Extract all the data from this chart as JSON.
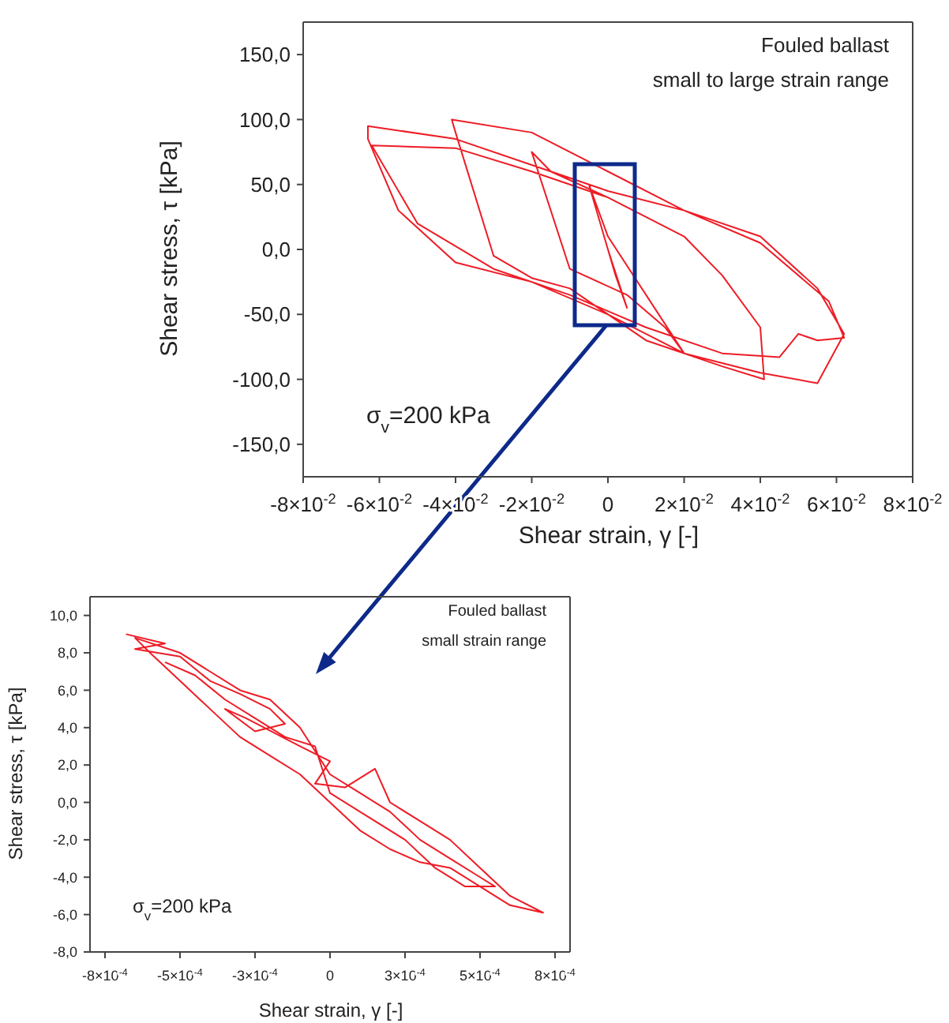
{
  "chart_data": [
    {
      "type": "line",
      "xlabel": "Shear strain, γ [-]",
      "ylabel": "Shear stress, τ [kPa]",
      "annotations": [
        "Fouled ballast",
        "small to large strain range",
        "σ$_{v}$=200 kPa"
      ],
      "xlim": [
        -0.08,
        0.08
      ],
      "xticks": [
        {
          "value": -0.08,
          "label": "-8×10$^{-2}$"
        },
        {
          "value": -0.06,
          "label": "-6×10$^{-2}$"
        },
        {
          "value": -0.04,
          "label": "-4×10$^{-2}$"
        },
        {
          "value": -0.02,
          "label": "-2×10$^{-2}$"
        },
        0,
        {
          "value": 0.02,
          "label": "2×10$^{-2}$"
        },
        {
          "value": 0.04,
          "label": "4×10$^{-2}$"
        },
        {
          "value": 0.06,
          "label": "6×10$^{-2}$"
        },
        {
          "value": 0.08,
          "label": "8×10$^{-2}$"
        }
      ],
      "ylim": [
        -175,
        175
      ],
      "yticks": [
        {
          "value": -150,
          "label": "-150,0"
        },
        {
          "value": -100,
          "label": "-100,0"
        },
        {
          "value": -50,
          "label": "-50,0"
        },
        {
          "value": 0,
          "label": "0,0"
        },
        {
          "value": 50,
          "label": "50,0"
        },
        {
          "value": 100,
          "label": "100,0"
        },
        {
          "value": 150,
          "label": "150,0"
        }
      ],
      "series": [
        {
          "color": "#ee1c25",
          "x": [
            0,
            0.005,
            0.002,
            -0.005,
            0,
            0.02,
            0.015,
            0.005,
            -0.01,
            -0.02,
            -0.015,
            0,
            0.02,
            0.03,
            0.04,
            0.041,
            0.03,
            0.01,
            -0.005,
            -0.01,
            -0.02,
            -0.03,
            -0.04,
            -0.041,
            -0.02,
            0,
            0.02,
            0.04,
            0.055,
            0.062,
            0.055,
            0.04,
            0.02,
            0,
            -0.02,
            -0.04,
            -0.055,
            -0.063,
            -0.063,
            -0.04,
            -0.02,
            0,
            0.02,
            0.04,
            0.058,
            0.062,
            0.055,
            0.05,
            0.045,
            0.03,
            0.01,
            -0.01,
            -0.03,
            -0.05,
            -0.062,
            -0.04,
            -0.02,
            0
          ],
          "values": [
            0,
            -45,
            -20,
            50,
            10,
            -80,
            -60,
            -35,
            -15,
            75,
            60,
            40,
            10,
            -20,
            -60,
            -100,
            -90,
            -70,
            -40,
            -30,
            -22,
            -5,
            90,
            100,
            90,
            60,
            30,
            10,
            -30,
            -65,
            -103,
            -95,
            -80,
            -50,
            -25,
            -10,
            30,
            85,
            95,
            85,
            65,
            45,
            30,
            5,
            -40,
            -68,
            -70,
            -65,
            -83,
            -80,
            -60,
            -35,
            -15,
            20,
            80,
            78,
            60,
            40
          ]
        }
      ]
    },
    {
      "type": "line",
      "xlabel": "Shear strain, γ [-]",
      "ylabel": "Shear stress, τ [kPa]",
      "annotations": [
        "Fouled ballast",
        "small strain range",
        "σ$_{v}$=200 kPa"
      ],
      "xlim": [
        -0.0008,
        0.0008
      ],
      "xticks": [
        {
          "value": -0.00075,
          "label": "-8×10$^{-4}$"
        },
        {
          "value": -0.0005,
          "label": "-5×10$^{-4}$"
        },
        {
          "value": -0.00025,
          "label": "-3×10$^{-4}$"
        },
        0,
        {
          "value": 0.00025,
          "label": "3×10$^{-4}$"
        },
        {
          "value": 0.0005,
          "label": "5×10$^{-4}$"
        },
        {
          "value": 0.00075,
          "label": "8×10$^{-4}$"
        }
      ],
      "ylim": [
        -8,
        11
      ],
      "yticks": [
        {
          "value": -8,
          "label": "-8,0"
        },
        {
          "value": -6,
          "label": "-6,0"
        },
        {
          "value": -4,
          "label": "-4,0"
        },
        {
          "value": -2,
          "label": "-2,0"
        },
        {
          "value": 0,
          "label": "0,0"
        },
        {
          "value": 2,
          "label": "2,0"
        },
        {
          "value": 4,
          "label": "4,0"
        },
        {
          "value": 6,
          "label": "6,0"
        },
        {
          "value": 8,
          "label": "8,0"
        },
        {
          "value": 10,
          "label": "10,0"
        }
      ],
      "series": [
        {
          "color": "#ee1c25",
          "x": [
            -0.00068,
            -0.00055,
            -0.00065,
            -0.0005,
            -0.0004,
            -0.0003,
            -0.0002,
            -0.00015,
            -0.00025,
            -0.00035,
            -0.00028,
            -0.0001,
            0,
            -5e-05,
            5e-05,
            0.00015,
            0.0002,
            0.0003,
            0.0004,
            0.0005,
            0.0006,
            0.00071,
            0.0006,
            0.0005,
            0.0004,
            0.0003,
            0.0002,
            0.0001,
            0,
            -0.0001,
            -0.0002,
            -0.0003,
            -0.0004,
            -0.0005,
            -0.0006,
            -0.00065,
            -0.0005,
            -0.0004,
            -0.0003,
            -0.0002,
            -0.0001,
            0,
            0.0001,
            0.0002,
            0.0003,
            0.0004,
            0.0005,
            0.00055,
            0.00045,
            0.00035,
            0.00025,
            0.0001,
            0,
            -5e-05,
            -0.00015,
            -0.00025,
            -0.00035,
            -0.00045,
            -0.00055
          ],
          "values": [
            9,
            8.5,
            8.2,
            7.8,
            6.5,
            5.8,
            5,
            4.2,
            3.8,
            5,
            4.5,
            3,
            2.2,
            1,
            0.8,
            1.8,
            0,
            -1,
            -2,
            -3.5,
            -5,
            -5.9,
            -5.5,
            -4.5,
            -3.5,
            -3.2,
            -2.5,
            -1.5,
            0,
            1.5,
            2.5,
            3.5,
            5,
            6.5,
            8,
            8.8,
            8,
            7,
            6,
            5.5,
            4,
            1.5,
            0.5,
            -0.5,
            -2,
            -3,
            -4,
            -4.5,
            -4.5,
            -3.5,
            -2,
            -0.5,
            0.5,
            3,
            3.5,
            4.5,
            5.5,
            6.8,
            7.5
          ]
        }
      ]
    }
  ]
}
